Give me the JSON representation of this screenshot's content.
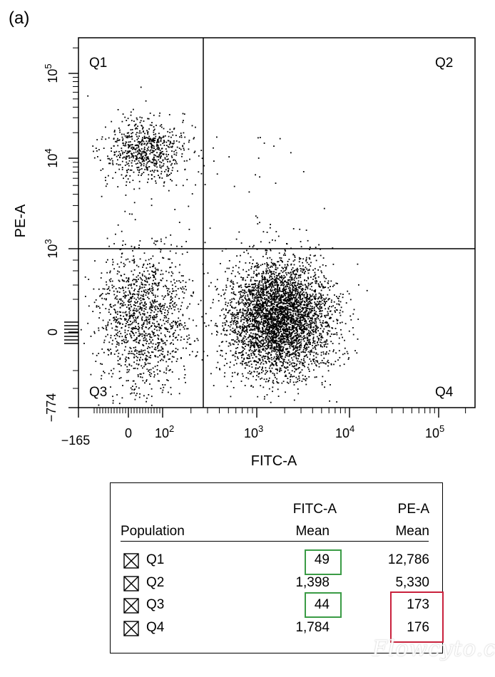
{
  "panel_label": "(a)",
  "chart_data": {
    "type": "scatter",
    "xlabel": "FITC-A",
    "ylabel": "PE-A",
    "x_ticks": [
      "−165",
      "0",
      "10^2",
      "10^3",
      "10^4",
      "10^5"
    ],
    "y_ticks": [
      "−774",
      "0",
      "10^3",
      "10^4",
      "10^5"
    ],
    "quadrant_labels": [
      "Q1",
      "Q2",
      "Q3",
      "Q4"
    ],
    "populations": [
      {
        "name": "Q1",
        "fitc_center": 49,
        "pe_center": 12786
      },
      {
        "name": "Q3",
        "fitc_center": 44,
        "pe_center": 173
      },
      {
        "name": "Q4",
        "fitc_center": 1784,
        "pe_center": 176
      }
    ]
  },
  "table": {
    "col_population": "Population",
    "col_fitc_top": "FITC-A",
    "col_fitc_bottom": "Mean",
    "col_pe_top": "PE-A",
    "col_pe_bottom": "Mean",
    "rows": [
      {
        "name": "Q1",
        "fitc": "49",
        "pe": "12,786"
      },
      {
        "name": "Q2",
        "fitc": "1,398",
        "pe": "5,330"
      },
      {
        "name": "Q3",
        "fitc": "44",
        "pe": "173"
      },
      {
        "name": "Q4",
        "fitc": "1,784",
        "pe": "176"
      }
    ]
  },
  "colors": {
    "highlight_green": "#3a9b45",
    "highlight_red": "#c9213c"
  },
  "watermark": "Flowcyto.cn"
}
